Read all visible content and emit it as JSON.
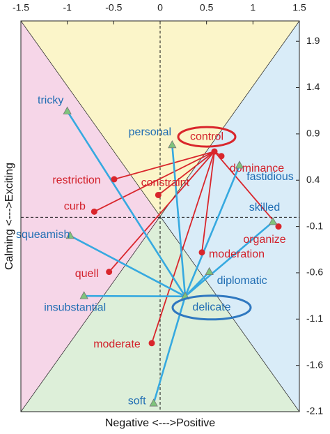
{
  "chart_data": {
    "type": "scatter",
    "xlabel": "Negative <--->Positive",
    "ylabel": "Calming <--->Exciting",
    "xlim": [
      -1.5,
      1.5
    ],
    "ylim": [
      -2.1,
      2.12
    ],
    "xticks": [
      -1.5,
      -1,
      -0.5,
      0,
      0.5,
      1,
      1.5
    ],
    "yticks": [
      1.9,
      1.4,
      0.9,
      0.4,
      -0.1,
      -0.6,
      -1.1,
      -1.6,
      -2.1
    ],
    "groups": [
      {
        "color": "#d9262c",
        "marker": "circle",
        "hub": {
          "label": "control",
          "x": 0.585,
          "y": 0.71
        },
        "points": [
          {
            "label": "dominance",
            "x": 0.66,
            "y": 0.66
          },
          {
            "label": "restriction",
            "x": -0.495,
            "y": 0.41
          },
          {
            "label": "constraint",
            "x": -0.02,
            "y": 0.24
          },
          {
            "label": "curb",
            "x": -0.71,
            "y": 0.06
          },
          {
            "label": "quell",
            "x": -0.55,
            "y": -0.59
          },
          {
            "label": "moderation",
            "x": 0.45,
            "y": -0.38
          },
          {
            "label": "organize",
            "x": 1.275,
            "y": -0.1
          },
          {
            "label": "moderate",
            "x": -0.09,
            "y": -1.36
          }
        ]
      },
      {
        "color": "#36a9e0",
        "marker": "triangle",
        "hub": {
          "label": "delicate",
          "x": 0.27,
          "y": -0.855
        },
        "points": [
          {
            "label": "tricky",
            "x": -1.0,
            "y": 1.145
          },
          {
            "label": "personal",
            "x": 0.13,
            "y": 0.78
          },
          {
            "label": "fastidious",
            "x": 0.855,
            "y": 0.56
          },
          {
            "label": "skilled",
            "x": 1.215,
            "y": -0.05
          },
          {
            "label": "squeamish",
            "x": -0.97,
            "y": -0.2
          },
          {
            "label": "diplomatic",
            "x": 0.53,
            "y": -0.59
          },
          {
            "label": "insubstantial",
            "x": -0.82,
            "y": -0.85
          },
          {
            "label": "soft",
            "x": -0.07,
            "y": -2.01
          }
        ]
      }
    ]
  }
}
